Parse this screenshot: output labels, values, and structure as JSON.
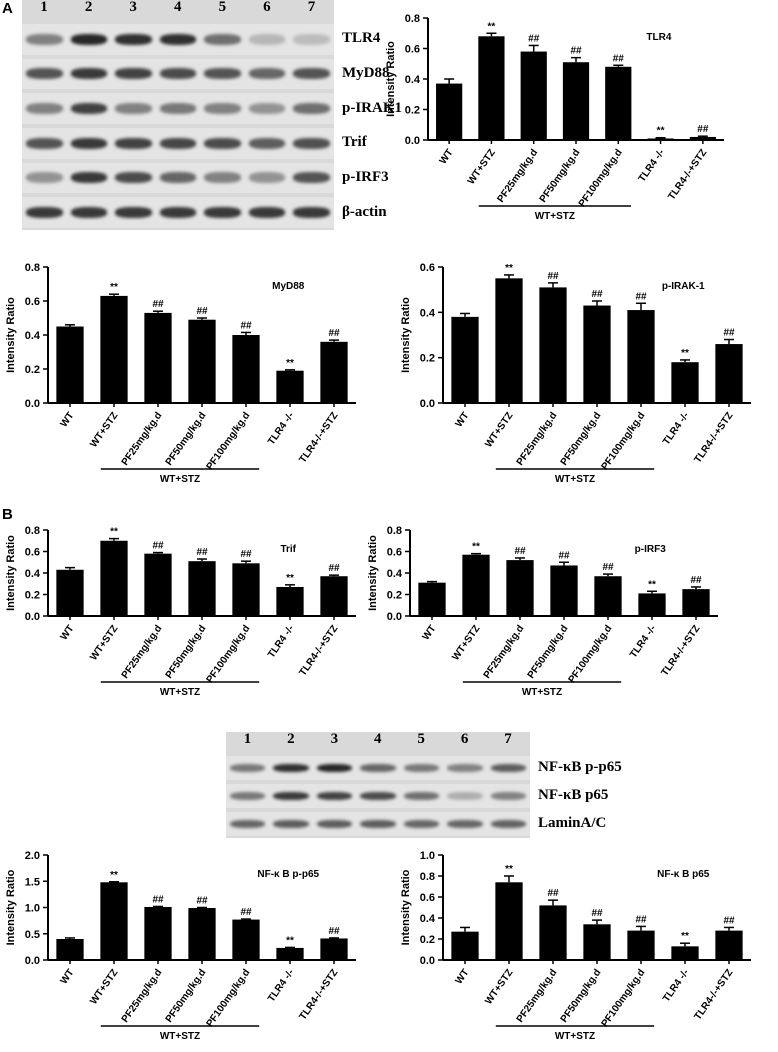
{
  "panels": [
    "A",
    "B"
  ],
  "blot_top": {
    "lanes": [
      "1",
      "2",
      "3",
      "4",
      "5",
      "6",
      "7"
    ],
    "labels": [
      "TLR4",
      "MyD88",
      "p-IRAK1",
      "Trif",
      "p-IRF3",
      "β-actin"
    ],
    "band_intensity": [
      [
        0.45,
        0.95,
        0.9,
        0.9,
        0.55,
        0.15,
        0.12
      ],
      [
        0.7,
        0.85,
        0.8,
        0.75,
        0.7,
        0.6,
        0.7
      ],
      [
        0.45,
        0.8,
        0.45,
        0.5,
        0.45,
        0.35,
        0.55
      ],
      [
        0.7,
        0.85,
        0.8,
        0.78,
        0.75,
        0.65,
        0.72
      ],
      [
        0.35,
        0.85,
        0.75,
        0.6,
        0.45,
        0.35,
        0.7
      ],
      [
        0.85,
        0.85,
        0.85,
        0.85,
        0.85,
        0.85,
        0.85
      ]
    ]
  },
  "blot_bottom": {
    "lanes": [
      "1",
      "2",
      "3",
      "4",
      "5",
      "6",
      "7"
    ],
    "labels": [
      "NF-κB p-p65",
      "NF-κB p65",
      "LaminA/C"
    ],
    "band_intensity": [
      [
        0.5,
        0.9,
        0.95,
        0.6,
        0.5,
        0.45,
        0.65
      ],
      [
        0.5,
        0.85,
        0.8,
        0.75,
        0.55,
        0.2,
        0.45
      ],
      [
        0.6,
        0.65,
        0.65,
        0.65,
        0.6,
        0.6,
        0.62
      ]
    ]
  },
  "chart_data": [
    {
      "type": "bar",
      "title": "TLR4",
      "ylabel": "Intensity Ratio",
      "categories": [
        "WT",
        "WT+STZ",
        "PF25mg/kg.d",
        "PF50mg/kg.d",
        "PF100mg/kg.d",
        "TLR4 -/-",
        "TLR4-/-+STZ"
      ],
      "values": [
        0.37,
        0.68,
        0.58,
        0.51,
        0.48,
        0.01,
        0.02
      ],
      "errors": [
        0.03,
        0.02,
        0.04,
        0.03,
        0.01,
        0.005,
        0.005
      ],
      "annotations": [
        "",
        "**",
        "##",
        "##",
        "##",
        "**",
        "##"
      ],
      "ylim": [
        0,
        0.8
      ],
      "yticks": [
        "0.0",
        "0.2",
        "0.4",
        "0.6",
        "0.8"
      ],
      "group_label": "WT+STZ"
    },
    {
      "type": "bar",
      "title": "MyD88",
      "ylabel": "Intensity Ratio",
      "categories": [
        "WT",
        "WT+STZ",
        "PF25mg/kg.d",
        "PF50mg/kg.d",
        "PF100mg/kg.d",
        "TLR4 -/-",
        "TLR4-/-+STZ"
      ],
      "values": [
        0.45,
        0.63,
        0.53,
        0.49,
        0.4,
        0.19,
        0.36
      ],
      "errors": [
        0.01,
        0.01,
        0.01,
        0.01,
        0.015,
        0.005,
        0.01
      ],
      "annotations": [
        "",
        "**",
        "##",
        "##",
        "##",
        "**",
        "##"
      ],
      "ylim": [
        0,
        0.8
      ],
      "yticks": [
        "0.0",
        "0.2",
        "0.4",
        "0.6",
        "0.8"
      ],
      "group_label": "WT+STZ"
    },
    {
      "type": "bar",
      "title": "p-IRAK-1",
      "ylabel": "Intensity Ratio",
      "categories": [
        "WT",
        "WT+STZ",
        "PF25mg/kg.d",
        "PF50mg/kg.d",
        "PF100mg/kg.d",
        "TLR4 -/-",
        "TLR4-/-+STZ"
      ],
      "values": [
        0.38,
        0.55,
        0.51,
        0.43,
        0.41,
        0.18,
        0.26
      ],
      "errors": [
        0.015,
        0.015,
        0.02,
        0.02,
        0.03,
        0.01,
        0.02
      ],
      "annotations": [
        "",
        "**",
        "##",
        "##",
        "##",
        "**",
        "##"
      ],
      "ylim": [
        0,
        0.6
      ],
      "yticks": [
        "0.0",
        "0.2",
        "0.4",
        "0.6"
      ],
      "group_label": "WT+STZ"
    },
    {
      "type": "bar",
      "title": "Trif",
      "ylabel": "Intensity Ratio",
      "categories": [
        "WT",
        "WT+STZ",
        "PF25mg/kg.d",
        "PF50mg/kg.d",
        "PF100mg/kg.d",
        "TLR4 -/-",
        "TLR4-/-+STZ"
      ],
      "values": [
        0.43,
        0.7,
        0.58,
        0.51,
        0.49,
        0.27,
        0.37
      ],
      "errors": [
        0.02,
        0.02,
        0.01,
        0.02,
        0.02,
        0.02,
        0.01
      ],
      "annotations": [
        "",
        "**",
        "##",
        "##",
        "##",
        "**",
        "##"
      ],
      "ylim": [
        0,
        0.8
      ],
      "yticks": [
        "0.0",
        "0.2",
        "0.4",
        "0.6",
        "0.8"
      ],
      "group_label": "WT+STZ"
    },
    {
      "type": "bar",
      "title": "p-IRF3",
      "ylabel": "Intensity Ratio",
      "categories": [
        "WT",
        "WT+STZ",
        "PF25mg/kg.d",
        "PF50mg/kg.d",
        "PF100mg/kg.d",
        "TLR4 -/-",
        "TLR4-/-+STZ"
      ],
      "values": [
        0.31,
        0.57,
        0.52,
        0.47,
        0.37,
        0.21,
        0.25
      ],
      "errors": [
        0.01,
        0.01,
        0.02,
        0.03,
        0.02,
        0.02,
        0.02
      ],
      "annotations": [
        "",
        "**",
        "##",
        "##",
        "##",
        "**",
        "##"
      ],
      "ylim": [
        0,
        0.8
      ],
      "yticks": [
        "0.0",
        "0.2",
        "0.4",
        "0.6",
        "0.8"
      ],
      "group_label": "WT+STZ"
    },
    {
      "type": "bar",
      "title": "NF-κ B p-p65",
      "ylabel": "Intensity Ratio",
      "categories": [
        "WT",
        "WT+STZ",
        "PF25mg/kg.d",
        "PF50mg/kg.d",
        "PF100mg/kg.d",
        "TLR4 -/-",
        "TLR4-/-+STZ"
      ],
      "values": [
        0.4,
        1.48,
        1.01,
        0.99,
        0.77,
        0.23,
        0.41
      ],
      "errors": [
        0.02,
        0.01,
        0.01,
        0.01,
        0.01,
        0.01,
        0.01
      ],
      "annotations": [
        "",
        "**",
        "##",
        "##",
        "##",
        "**",
        "##"
      ],
      "ylim": [
        0,
        2.0
      ],
      "yticks": [
        "0.0",
        "0.5",
        "1.0",
        "1.5",
        "2.0"
      ],
      "group_label": "WT+STZ"
    },
    {
      "type": "bar",
      "title": "NF-κ B p65",
      "ylabel": "Intensity Ratio",
      "categories": [
        "WT",
        "WT+STZ",
        "PF25mg/kg.d",
        "PF50mg/kg.d",
        "PF100mg/kg.d",
        "TLR4 -/-",
        "TLR4-/-+STZ"
      ],
      "values": [
        0.27,
        0.74,
        0.52,
        0.34,
        0.28,
        0.13,
        0.28
      ],
      "errors": [
        0.04,
        0.06,
        0.05,
        0.04,
        0.04,
        0.03,
        0.03
      ],
      "annotations": [
        "",
        "**",
        "##",
        "##",
        "##",
        "**",
        "##"
      ],
      "ylim": [
        0,
        1.0
      ],
      "yticks": [
        "0.0",
        "0.2",
        "0.4",
        "0.6",
        "0.8",
        "1.0"
      ],
      "group_label": "WT+STZ"
    }
  ]
}
